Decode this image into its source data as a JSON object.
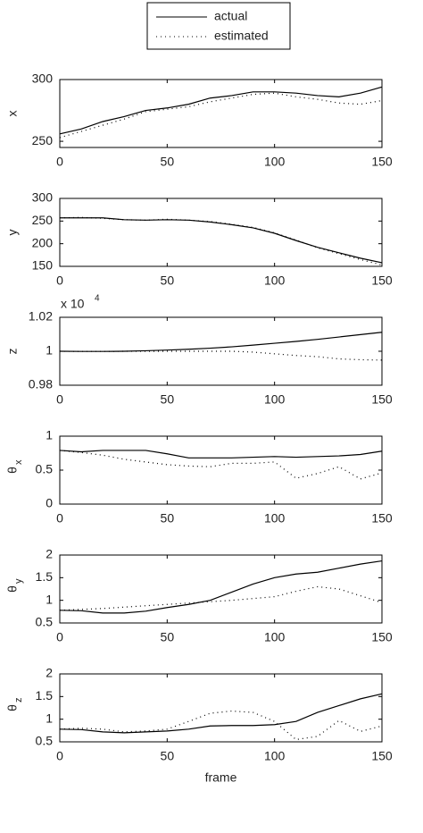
{
  "chart_data": [
    {
      "type": "line",
      "ylabel": "x",
      "x": [
        0,
        10,
        20,
        30,
        40,
        50,
        60,
        70,
        80,
        90,
        100,
        110,
        120,
        130,
        140,
        150
      ],
      "xlim": [
        0,
        150
      ],
      "xticks": [
        0,
        50,
        100,
        150
      ],
      "ylim": [
        245,
        300
      ],
      "yticks": [
        250,
        300
      ],
      "series": [
        {
          "name": "actual",
          "color": "#000000",
          "style": "solid",
          "values": [
            256,
            260,
            266,
            270,
            275,
            277,
            280,
            285,
            287,
            290,
            290,
            289,
            287,
            286,
            289,
            294
          ]
        },
        {
          "name": "estimated",
          "color": "#000000",
          "style": "dotted",
          "values": [
            253,
            258,
            263,
            268,
            274,
            276,
            278,
            282,
            285,
            288,
            289,
            286,
            284,
            281,
            280,
            283
          ]
        }
      ]
    },
    {
      "type": "line",
      "ylabel": "y",
      "x": [
        0,
        10,
        20,
        30,
        40,
        50,
        60,
        70,
        80,
        90,
        100,
        110,
        120,
        130,
        140,
        150
      ],
      "xlim": [
        0,
        150
      ],
      "xticks": [
        0,
        50,
        100,
        150
      ],
      "ylim": [
        150,
        300
      ],
      "yticks": [
        150,
        200,
        250,
        300
      ],
      "series": [
        {
          "color": "#000000",
          "style": "solid",
          "values": [
            257,
            257,
            257,
            253,
            252,
            253,
            252,
            248,
            242,
            235,
            223,
            207,
            192,
            180,
            168,
            158
          ]
        },
        {
          "color": "#000000",
          "style": "dotted",
          "values": [
            257,
            258,
            256,
            253,
            252,
            254,
            252,
            249,
            243,
            236,
            224,
            208,
            191,
            178,
            165,
            153
          ]
        }
      ]
    },
    {
      "type": "line",
      "ylabel": "z",
      "yscale_text": "x 10",
      "yscale_exponent": "4",
      "x": [
        0,
        10,
        20,
        30,
        40,
        50,
        60,
        70,
        80,
        90,
        100,
        110,
        120,
        130,
        140,
        150
      ],
      "xlim": [
        0,
        150
      ],
      "xticks": [
        0,
        50,
        100,
        150
      ],
      "ylim": [
        0.98,
        1.02
      ],
      "yticks": [
        0.98,
        1,
        1.02
      ],
      "series": [
        {
          "color": "#000000",
          "style": "solid",
          "values": [
            1.0,
            0.9999,
            0.9999,
            1.0,
            1.0003,
            1.0007,
            1.0012,
            1.0018,
            1.0026,
            1.0036,
            1.0047,
            1.0058,
            1.007,
            1.0084,
            1.0098,
            1.0112
          ]
        },
        {
          "color": "#000000",
          "style": "dotted",
          "values": [
            1.0,
            0.9999,
            0.9999,
            1.0,
            1.0,
            1.0,
            1.0,
            1.0,
            1.0,
            0.9995,
            0.9985,
            0.9975,
            0.9968,
            0.9955,
            0.995,
            0.9948
          ]
        }
      ]
    },
    {
      "type": "line",
      "ylabel": "θ",
      "ylabel_sub": "x",
      "x": [
        0,
        10,
        20,
        30,
        40,
        50,
        60,
        70,
        80,
        90,
        100,
        110,
        120,
        130,
        140,
        150
      ],
      "xlim": [
        0,
        150
      ],
      "xticks": [
        0,
        50,
        100,
        150
      ],
      "ylim": [
        0,
        1
      ],
      "yticks": [
        0,
        0.5,
        1
      ],
      "series": [
        {
          "color": "#000000",
          "style": "solid",
          "values": [
            0.79,
            0.77,
            0.79,
            0.79,
            0.79,
            0.74,
            0.68,
            0.68,
            0.68,
            0.69,
            0.7,
            0.69,
            0.7,
            0.71,
            0.73,
            0.78
          ]
        },
        {
          "color": "#000000",
          "style": "dotted",
          "values": [
            0.79,
            0.76,
            0.72,
            0.66,
            0.62,
            0.58,
            0.56,
            0.55,
            0.6,
            0.6,
            0.62,
            0.38,
            0.45,
            0.55,
            0.37,
            0.46
          ]
        }
      ]
    },
    {
      "type": "line",
      "ylabel": "θ",
      "ylabel_sub": "y",
      "x": [
        0,
        10,
        20,
        30,
        40,
        50,
        60,
        70,
        80,
        90,
        100,
        110,
        120,
        130,
        140,
        150
      ],
      "xlim": [
        0,
        150
      ],
      "xticks": [
        0,
        50,
        100,
        150
      ],
      "ylim": [
        0.5,
        2
      ],
      "yticks": [
        0.5,
        1,
        1.5,
        2
      ],
      "series": [
        {
          "color": "#000000",
          "style": "solid",
          "values": [
            0.78,
            0.77,
            0.72,
            0.72,
            0.76,
            0.84,
            0.91,
            1.0,
            1.18,
            1.36,
            1.5,
            1.58,
            1.62,
            1.71,
            1.8,
            1.87
          ]
        },
        {
          "color": "#000000",
          "style": "dotted",
          "values": [
            0.78,
            0.8,
            0.82,
            0.85,
            0.88,
            0.91,
            0.94,
            0.97,
            1.0,
            1.04,
            1.08,
            1.2,
            1.3,
            1.25,
            1.1,
            0.95
          ]
        }
      ]
    },
    {
      "type": "line",
      "ylabel": "θ",
      "ylabel_sub": "z",
      "xlabel": "frame",
      "x": [
        0,
        10,
        20,
        30,
        40,
        50,
        60,
        70,
        80,
        90,
        100,
        110,
        120,
        130,
        140,
        150
      ],
      "xlim": [
        0,
        150
      ],
      "xticks": [
        0,
        50,
        100,
        150
      ],
      "ylim": [
        0.5,
        2
      ],
      "yticks": [
        0.5,
        1,
        1.5,
        2
      ],
      "series": [
        {
          "color": "#000000",
          "style": "solid",
          "values": [
            0.78,
            0.77,
            0.72,
            0.7,
            0.72,
            0.74,
            0.78,
            0.85,
            0.86,
            0.86,
            0.88,
            0.95,
            1.15,
            1.3,
            1.45,
            1.56
          ]
        },
        {
          "color": "#000000",
          "style": "dotted",
          "values": [
            0.78,
            0.8,
            0.78,
            0.72,
            0.74,
            0.78,
            0.95,
            1.13,
            1.18,
            1.15,
            0.95,
            0.55,
            0.62,
            0.97,
            0.73,
            0.85
          ]
        }
      ]
    }
  ]
}
